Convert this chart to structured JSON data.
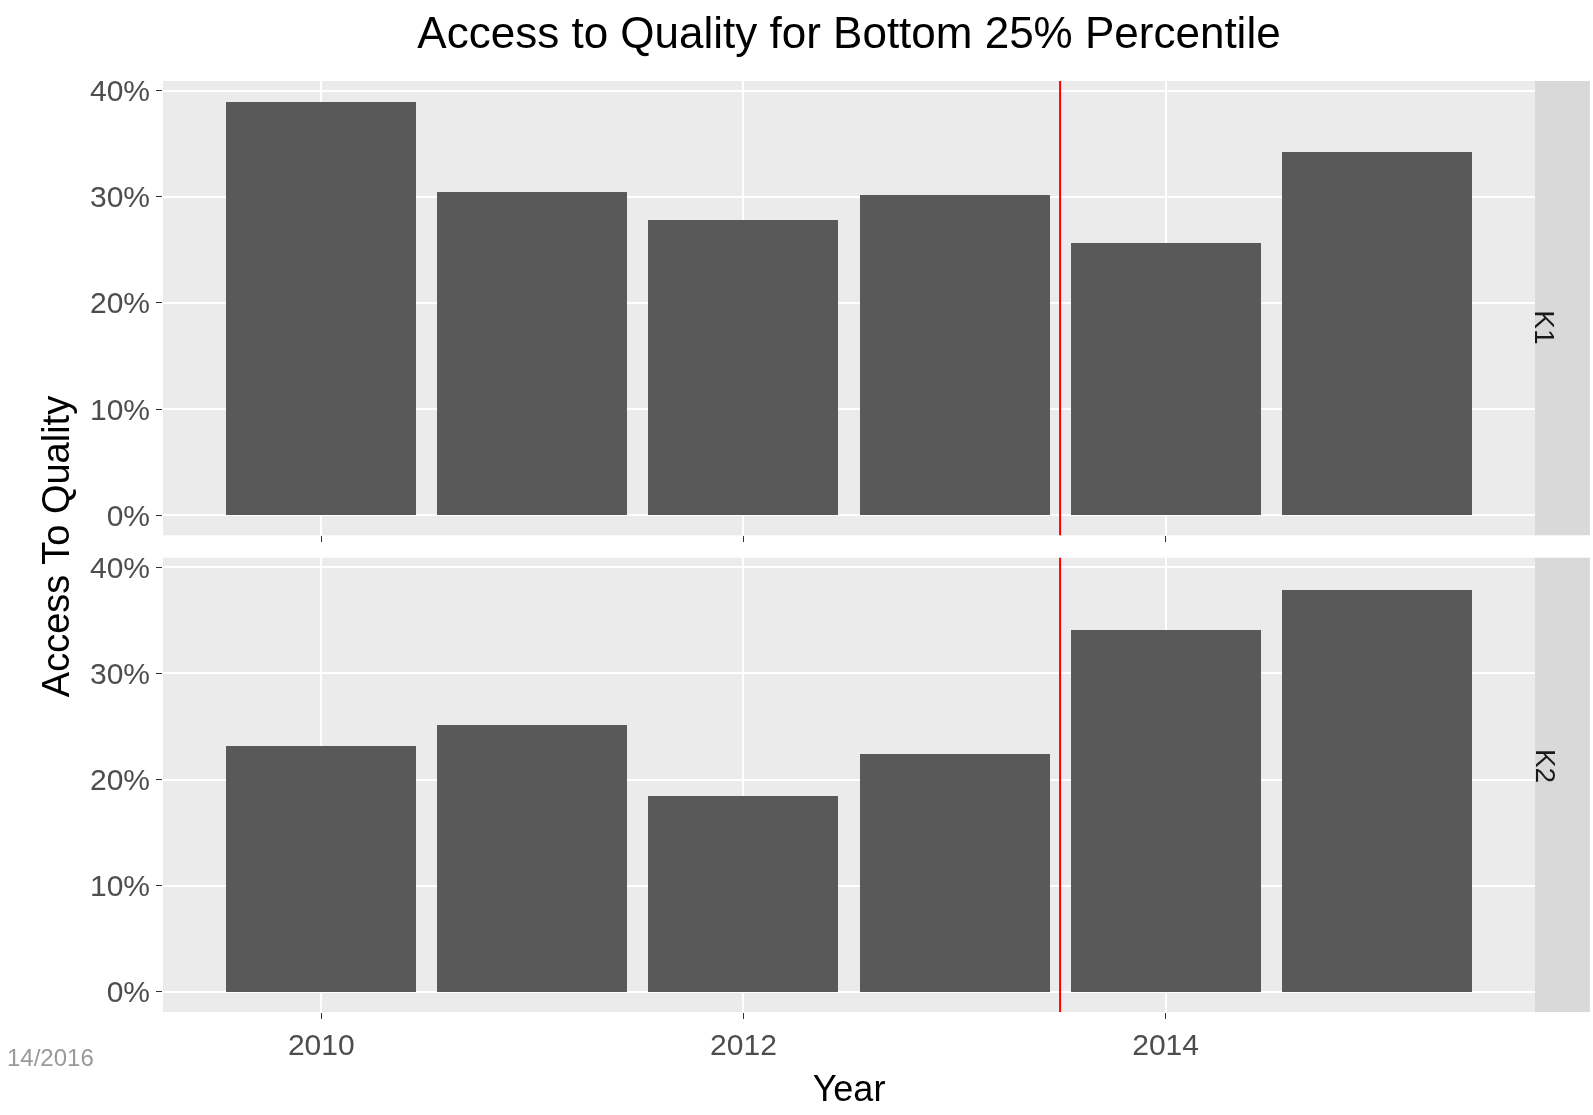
{
  "chart_data": [
    {
      "type": "bar",
      "title": "Access to Quality for Bottom 25% Percentile",
      "ylabel": "Access To Quality",
      "annotations": [
        "K1"
      ],
      "x": [
        2010,
        2011,
        2012,
        2013,
        2014,
        2015
      ],
      "values": [
        38.9,
        30.4,
        27.8,
        30.2,
        25.6,
        34.2
      ],
      "color": "#595959",
      "xlim": [
        2009.25,
        2015.75
      ],
      "xticks": [
        2010,
        2012,
        2014
      ],
      "ylim": [
        -1.9,
        40.9
      ],
      "yticks": [
        {
          "value": 0,
          "label": "0%"
        },
        {
          "value": 10,
          "label": "10%"
        },
        {
          "value": 20,
          "label": "20%"
        },
        {
          "value": 30,
          "label": "30%"
        },
        {
          "value": 40,
          "label": "40%"
        }
      ],
      "grid": true,
      "tick_labels": "y",
      "ref_lines": [
        {
          "axis": "x",
          "value": 2013.5,
          "color": "#ff0000"
        }
      ]
    },
    {
      "type": "bar",
      "xlabel": "Year",
      "annotations": [
        "K2",
        "14/2016"
      ],
      "x": [
        2010,
        2011,
        2012,
        2013,
        2014,
        2015
      ],
      "values": [
        23.2,
        25.2,
        18.5,
        22.4,
        34.1,
        37.9
      ],
      "color": "#595959",
      "xlim": [
        2009.25,
        2015.75
      ],
      "xticks": [
        2010,
        2012,
        2014
      ],
      "ylim": [
        -1.9,
        40.9
      ],
      "yticks": [
        {
          "value": 0,
          "label": "0%"
        },
        {
          "value": 10,
          "label": "10%"
        },
        {
          "value": 20,
          "label": "20%"
        },
        {
          "value": 30,
          "label": "30%"
        },
        {
          "value": 40,
          "label": "40%"
        }
      ],
      "grid": true,
      "ref_lines": [
        {
          "axis": "x",
          "value": 2013.5,
          "color": "#ff0000"
        }
      ]
    }
  ]
}
